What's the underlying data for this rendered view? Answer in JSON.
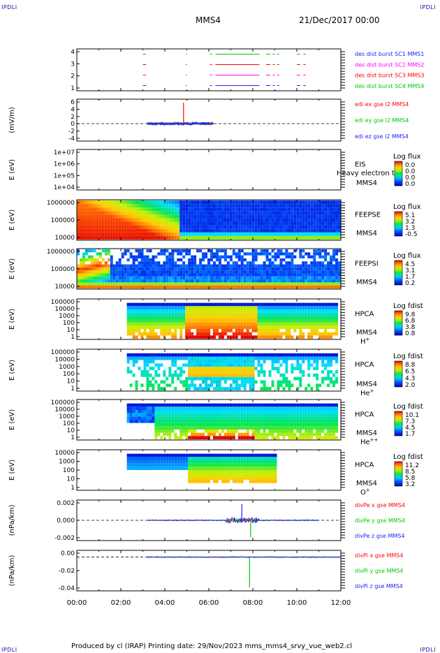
{
  "header": {
    "corner_mark": "IPDLI",
    "spacecraft": "MMS4",
    "date_time": "21/Dec/2017 00:00"
  },
  "footer": {
    "text": "Produced by cl (IRAP)   Printing date: 29/Nov/2023   mms_mms4_srvy_vue_web2.cl"
  },
  "time_axis": {
    "range": [
      0,
      12
    ],
    "tick_labels": [
      "00:00",
      "02:00",
      "04:00",
      "06:00",
      "08:00",
      "10:00",
      "12:00"
    ]
  },
  "chart_data": [
    {
      "type": "line",
      "id": "burst",
      "yticks": [
        "1",
        "2",
        "3",
        "4"
      ],
      "ylim": [
        0.5,
        4.5
      ],
      "legend": [
        {
          "text": "des dist burst SC1 MMS1",
          "color": "#2020ff"
        },
        {
          "text": "des dist burst SC2 MMS2",
          "color": "#ff00ff"
        },
        {
          "text": "des dist burst SC3 MMS3",
          "color": "#ff0000"
        },
        {
          "text": "des dist burst SC4 MMS4",
          "color": "#00c800"
        }
      ],
      "segments": [
        [
          3.0,
          3.15
        ],
        [
          4.95,
          5.0
        ],
        [
          6.05,
          6.15
        ],
        [
          6.3,
          8.3
        ],
        [
          8.6,
          8.8
        ],
        [
          8.9,
          9.0
        ],
        [
          9.1,
          9.2
        ],
        [
          10.0,
          10.15
        ],
        [
          10.3,
          10.4
        ]
      ]
    },
    {
      "type": "line",
      "id": "edi",
      "ylabel": "(mV/m)",
      "yticks": [
        "-4",
        "-2",
        "0",
        "2",
        "4",
        "6"
      ],
      "ylim": [
        -5,
        7
      ],
      "dashed_zero": true,
      "legend": [
        {
          "text": "edi ex gse l2 MMS4",
          "color": "#ff0000"
        },
        {
          "text": "edi ey gse l2 MMS4",
          "color": "#00c800"
        },
        {
          "text": "edi ez gse l2 MMS4",
          "color": "#2020ff"
        }
      ],
      "range_t": [
        3.2,
        6.2
      ],
      "spike": {
        "t": 4.85,
        "value": 6.0
      }
    },
    {
      "type": "heatmap",
      "id": "eis",
      "ylabel": "E (eV)",
      "yticks": [
        "1e+04",
        "1e+05",
        "1e+06",
        "1e+07"
      ],
      "side_labels": [
        "EIS",
        "MMS4"
      ],
      "overlay_text": "Heavy electron to",
      "colorbar_title": "Log flux",
      "colorbar_ticks": [
        "0.0",
        "0.0",
        "0.0",
        "0.0"
      ],
      "pattern": "empty"
    },
    {
      "type": "heatmap",
      "id": "feepse",
      "ylabel": "E (eV)",
      "yticks": [
        "10000",
        "100000",
        "1000000"
      ],
      "side_labels": [
        "FEEPSE",
        "MMS4"
      ],
      "colorbar_title": "Log flux",
      "colorbar_ticks": [
        "5.1",
        "3.2",
        "1.3",
        "-0.5"
      ],
      "pattern": "feepse"
    },
    {
      "type": "heatmap",
      "id": "feepsi",
      "ylabel": "E (eV)",
      "yticks": [
        "10000",
        "100000",
        "1000000"
      ],
      "side_labels": [
        "FEEPSI",
        "MMS4"
      ],
      "colorbar_title": "Log flux",
      "colorbar_ticks": [
        "4.5",
        "3.1",
        "1.7",
        "0.2"
      ],
      "pattern": "feepsi"
    },
    {
      "type": "heatmap",
      "id": "hpca_h",
      "ylabel": "E (eV)",
      "yticks": [
        "1",
        "10",
        "100",
        "1000",
        "10000",
        "100000"
      ],
      "side_labels": [
        "HPCA",
        "MMS4"
      ],
      "species": {
        "base": "H",
        "sup": "+"
      },
      "colorbar_title": "Log fdist",
      "colorbar_ticks": [
        "9.8",
        "6.8",
        "3.8",
        "0.8"
      ],
      "pattern": "hpca_h"
    },
    {
      "type": "heatmap",
      "id": "hpca_he1",
      "ylabel": "E (eV)",
      "yticks": [
        "1",
        "10",
        "100",
        "1000",
        "10000",
        "100000"
      ],
      "side_labels": [
        "HPCA",
        "MMS4"
      ],
      "species": {
        "base": "He",
        "sup": "+"
      },
      "colorbar_title": "Log fdist",
      "colorbar_ticks": [
        "8.8",
        "6.5",
        "4.3",
        "2.0"
      ],
      "pattern": "hpca_he1"
    },
    {
      "type": "heatmap",
      "id": "hpca_he2",
      "ylabel": "E (eV)",
      "yticks": [
        "1",
        "10",
        "100",
        "1000",
        "10000",
        "100000"
      ],
      "side_labels": [
        "HPCA",
        "MMS4"
      ],
      "species": {
        "base": "He",
        "sup": "++"
      },
      "colorbar_title": "Log fdist",
      "colorbar_ticks": [
        "10.1",
        "7.3",
        "4.5",
        "1.7"
      ],
      "pattern": "hpca_he2"
    },
    {
      "type": "heatmap",
      "id": "hpca_o",
      "ylabel": "E (eV)",
      "yticks": [
        "1",
        "10",
        "100",
        "1000",
        "10000"
      ],
      "side_labels": [
        "HPCA",
        "MMS4"
      ],
      "species": {
        "base": "O",
        "sup": "+"
      },
      "colorbar_title": "Log fdist",
      "colorbar_ticks": [
        "11.2",
        "8.5",
        "5.8",
        "3.2"
      ],
      "pattern": "hpca_o"
    },
    {
      "type": "line",
      "id": "divpe",
      "ylabel": "(nPa/km)",
      "yticks": [
        "-0.002",
        "0.000",
        "0.002"
      ],
      "ylim": [
        -0.003,
        0.003
      ],
      "dashed_zero": true,
      "legend": [
        {
          "text": "divPe x gse MMS4",
          "color": "#ff0000"
        },
        {
          "text": "divPe y gse MMS4",
          "color": "#00c800"
        },
        {
          "text": "divPe z gse MMS4",
          "color": "#2020ff"
        }
      ],
      "range_t": [
        3.2,
        11.0
      ],
      "burst_t": [
        6.8,
        8.3
      ]
    },
    {
      "type": "line",
      "id": "divpi",
      "ylabel": "(nPa/km)",
      "yticks": [
        "-0.04",
        "-0.02",
        "0.00"
      ],
      "ylim": [
        -0.05,
        0.01
      ],
      "dashed_zero": true,
      "legend": [
        {
          "text": "divPi x gse MMS4",
          "color": "#ff0000"
        },
        {
          "text": "divPi y gse MMS4",
          "color": "#00c800"
        },
        {
          "text": "divPi z gse MMS4",
          "color": "#2020ff"
        }
      ],
      "range_t": [
        3.2,
        12.0
      ],
      "spike": {
        "t": 7.85,
        "value": -0.045
      }
    }
  ]
}
